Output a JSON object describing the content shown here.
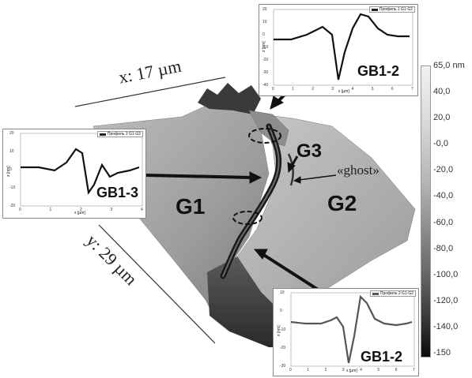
{
  "axes": {
    "x_label": "x: 17 µm",
    "y_label": "y: 29 µm"
  },
  "grains": {
    "g1": "G1",
    "g2": "G2",
    "g3": "G3"
  },
  "ghost_label": "«ghost»",
  "colorbar": {
    "ticks": [
      "65,0 nm",
      "40,0",
      "20,0",
      "-0,0",
      "-20,0",
      "-40,0",
      "-60,0",
      "-80,0",
      "-100,0",
      "-120,0",
      "-140,0",
      "-150"
    ]
  },
  "insets": {
    "top": {
      "legend": "Профиль 1 G1-G2",
      "tag": "GB1-2",
      "y_label": "z [nm]",
      "x_label": "x [µm]",
      "y_ticks": [
        "20",
        "10",
        "0",
        "-10",
        "-20",
        "-30",
        "-40"
      ],
      "x_ticks": [
        "0",
        "1",
        "2",
        "3",
        "4",
        "5",
        "6",
        "7"
      ]
    },
    "left": {
      "legend": "Профиль 3 G1-G2",
      "tag": "GB1-3",
      "y_label": "z [nm]",
      "x_label": "x [µm]",
      "y_ticks": [
        "20",
        "10",
        "0",
        "-10",
        "-20"
      ],
      "x_ticks": [
        "0",
        "1",
        "2",
        "3",
        "4"
      ]
    },
    "bottom": {
      "legend": "Профиль 2 G1-G2",
      "tag": "GB1-2",
      "y_label": "z [nm]",
      "x_label": "x [µm]",
      "y_ticks": [
        "10",
        "0",
        "-10",
        "-20",
        "-30"
      ],
      "x_ticks": [
        "0",
        "1",
        "2",
        "3",
        "4",
        "5",
        "6",
        "7"
      ]
    }
  }
}
